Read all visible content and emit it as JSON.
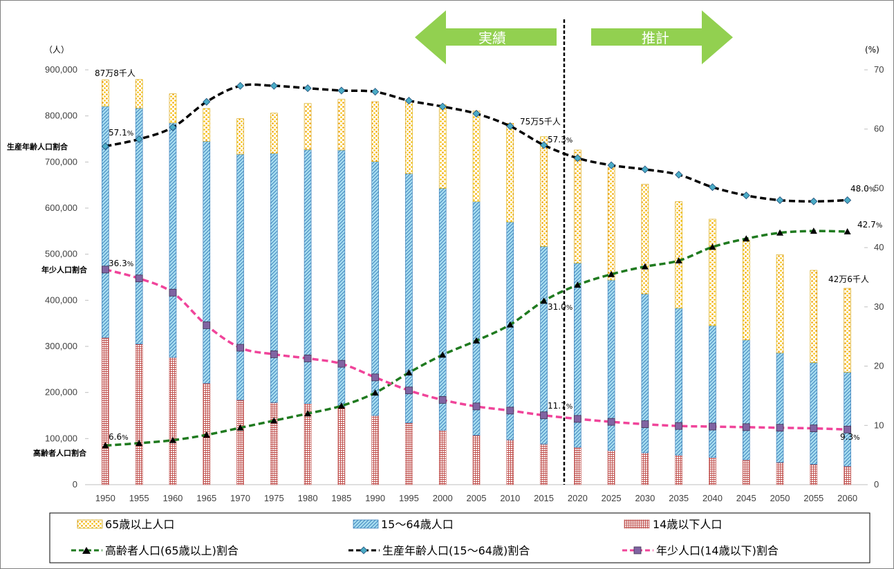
{
  "chart_data": {
    "type": "bar",
    "categories": [
      "1950",
      "1955",
      "1960",
      "1965",
      "1970",
      "1975",
      "1980",
      "1985",
      "1990",
      "1995",
      "2000",
      "2005",
      "2010",
      "2015",
      "2020",
      "2025",
      "2030",
      "2035",
      "2040",
      "2045",
      "2050",
      "2055",
      "2060"
    ],
    "stacked": true,
    "series": [
      {
        "name": "14歳以下人口",
        "kind": "bar",
        "color": "#c0504d",
        "values": [
          319000,
          305000,
          276000,
          220000,
          184000,
          178000,
          176000,
          168000,
          150000,
          134000,
          118000,
          107000,
          97000,
          88000,
          81000,
          74000,
          69000,
          64000,
          59000,
          54000,
          48000,
          44000,
          40000
        ]
      },
      {
        "name": "15〜64歳人口",
        "kind": "bar",
        "color": "#4bacc6",
        "values": [
          502000,
          512000,
          509000,
          525000,
          533000,
          541000,
          551000,
          558000,
          551000,
          541000,
          525000,
          507000,
          473000,
          429000,
          400000,
          370000,
          345000,
          319000,
          286000,
          260000,
          238000,
          221000,
          204000
        ]
      },
      {
        "name": "65歳以上人口",
        "kind": "bar",
        "color": "#f7c300",
        "values": [
          57000,
          62000,
          63000,
          71000,
          77000,
          87000,
          100000,
          110000,
          130000,
          158000,
          181000,
          197000,
          214000,
          238000,
          245000,
          244000,
          238000,
          231000,
          231000,
          217000,
          213000,
          200000,
          182000
        ]
      }
    ],
    "lines": [
      {
        "name": "高齢者人口(65歳以上)割合",
        "color": "#1f7a1f",
        "marker": "triangle",
        "values": [
          6.6,
          7.0,
          7.5,
          8.4,
          9.6,
          10.8,
          12.0,
          13.3,
          15.5,
          18.9,
          21.9,
          24.3,
          27.0,
          31.0,
          33.7,
          35.5,
          36.8,
          37.8,
          40.1,
          41.5,
          42.5,
          42.8,
          42.7
        ]
      },
      {
        "name": "生産年齢人口(15〜64歳)割合",
        "color": "#000000",
        "marker": "diamond",
        "values": [
          57.1,
          58.3,
          60.3,
          64.6,
          67.3,
          67.3,
          66.9,
          66.5,
          66.3,
          64.8,
          63.8,
          62.6,
          60.5,
          57.3,
          55.1,
          53.9,
          53.2,
          52.3,
          50.2,
          48.8,
          48.0,
          47.8,
          48.0
        ]
      },
      {
        "name": "年少人口(14歳以下)割合",
        "color": "#f0449a",
        "marker": "square",
        "values": [
          36.3,
          34.8,
          32.4,
          26.9,
          23.1,
          22.0,
          21.3,
          20.4,
          18.1,
          15.9,
          14.3,
          13.2,
          12.5,
          11.7,
          11.1,
          10.6,
          10.2,
          9.9,
          9.8,
          9.7,
          9.6,
          9.5,
          9.3
        ]
      }
    ],
    "ylabel": "（人）",
    "y2label": "(%)",
    "ylim": [
      0,
      900000
    ],
    "y2lim": [
      0,
      70
    ],
    "yticks": [
      "0",
      "100,000",
      "200,000",
      "300,000",
      "400,000",
      "500,000",
      "600,000",
      "700,000",
      "800,000",
      "900,000"
    ],
    "y2ticks": [
      "0",
      "10",
      "20",
      "30",
      "40",
      "50",
      "60",
      "70"
    ],
    "annotations": {
      "total_1950": "87万8千人",
      "total_2015": "75万5千人",
      "total_2060": "42万6千人",
      "working_label": "生産年齢人口割合",
      "youth_label": "年少人口割合",
      "elderly_label": "高齢者人口割合",
      "working_1950": "57.1",
      "youth_1950": "36.3",
      "elderly_1950": "6.6",
      "working_2015": "57.3",
      "elderly_2015": "31.0",
      "youth_2015": "11.7",
      "working_2060": "48.0",
      "elderly_2060": "42.7",
      "youth_2060": "9.3",
      "pct_sign": "%"
    },
    "divider_year": "2020",
    "arrow_left": "実績",
    "arrow_right": "推計",
    "arrow_color": "#92d050"
  }
}
